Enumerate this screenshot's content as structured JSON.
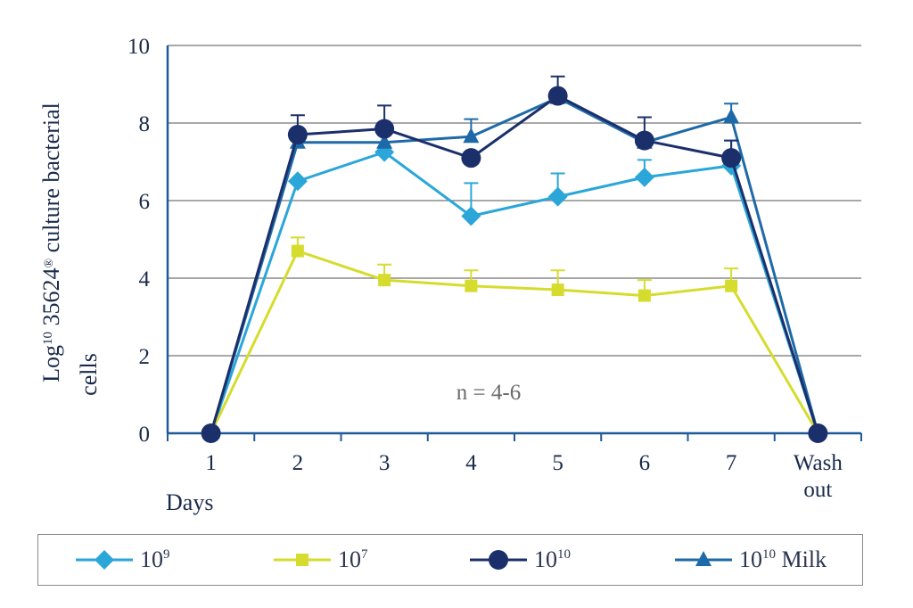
{
  "chart_data": {
    "type": "line",
    "ylabel_prefix": "Log",
    "ylabel_sup": "10",
    "ylabel_main": " 35624",
    "ylabel_reg": "®",
    "ylabel_rest": " culture bacterial",
    "ylabel_line2": "cells",
    "xlabel": "Days",
    "annotation": "n = 4-6",
    "ylim": [
      0,
      10
    ],
    "yticks": [
      "0",
      "2",
      "4",
      "6",
      "8",
      "10"
    ],
    "categories": [
      "1",
      "2",
      "3",
      "4",
      "5",
      "6",
      "7",
      "Wash out"
    ],
    "category_lines": [
      [
        "1"
      ],
      [
        "2"
      ],
      [
        "3"
      ],
      [
        "4"
      ],
      [
        "5"
      ],
      [
        "6"
      ],
      [
        "7"
      ],
      [
        "Wash",
        "out"
      ]
    ],
    "grid": true,
    "legend_position": "bottom",
    "series": [
      {
        "name_base": "10",
        "name_sup": "9",
        "name_suffix": "",
        "marker": "diamond",
        "color": "#2aa6d9",
        "values": [
          0,
          6.5,
          7.25,
          5.6,
          6.1,
          6.6,
          6.9,
          0
        ],
        "errors": [
          null,
          null,
          null,
          0.85,
          0.6,
          0.45,
          0.65,
          null
        ]
      },
      {
        "name_base": "10",
        "name_sup": "7",
        "name_suffix": "",
        "marker": "square",
        "color": "#d6dc2e",
        "values": [
          0,
          4.7,
          3.95,
          3.8,
          3.7,
          3.55,
          3.8,
          0
        ],
        "errors": [
          null,
          0.35,
          0.4,
          0.4,
          0.5,
          0.4,
          0.45,
          null
        ]
      },
      {
        "name_base": "10",
        "name_sup": "10",
        "name_suffix": "",
        "marker": "circle",
        "color": "#1b2f6b",
        "values": [
          0,
          7.7,
          7.85,
          7.1,
          8.7,
          7.55,
          7.1,
          0
        ],
        "errors": [
          null,
          0.5,
          0.6,
          null,
          0.5,
          0.6,
          0.45,
          null
        ]
      },
      {
        "name_base": "10",
        "name_sup": "10",
        "name_suffix": " Milk",
        "marker": "triangle",
        "color": "#1e6aa8",
        "values": [
          0,
          7.5,
          7.5,
          7.65,
          8.65,
          7.5,
          8.15,
          0
        ],
        "errors": [
          null,
          null,
          null,
          0.45,
          null,
          null,
          0.35,
          null
        ]
      }
    ]
  }
}
